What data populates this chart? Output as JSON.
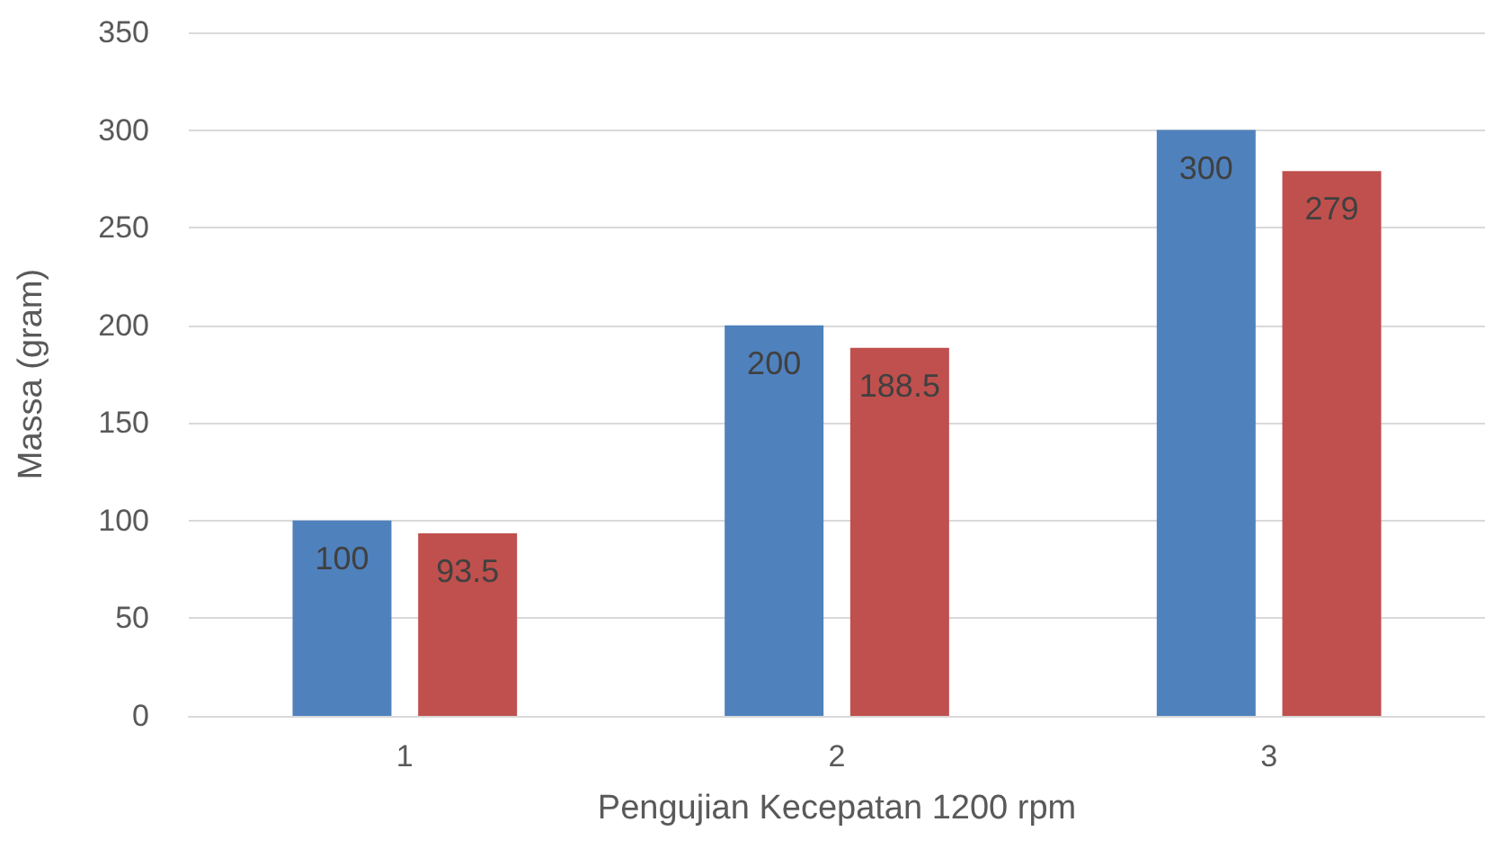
{
  "chart_data": {
    "type": "bar",
    "xlabel": "Pengujian Kecepatan 1200 rpm",
    "ylabel": "Massa (gram)",
    "categories": [
      "1",
      "2",
      "3"
    ],
    "series": [
      {
        "color": "#4f81bd",
        "values": [
          100,
          200,
          300
        ]
      },
      {
        "color": "#c0504d",
        "values": [
          93.5,
          188.5,
          279
        ]
      }
    ],
    "ylim": [
      0,
      350
    ],
    "yticks": [
      0,
      50,
      100,
      150,
      200,
      250,
      300,
      350
    ],
    "grid": "y",
    "data_labels": true
  }
}
